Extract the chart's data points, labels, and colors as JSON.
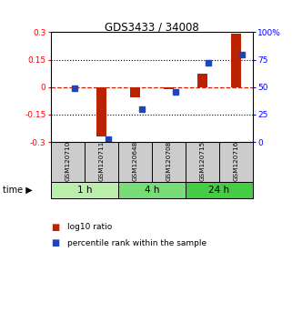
{
  "title": "GDS3433 / 34008",
  "samples": [
    "GSM120710",
    "GSM120711",
    "GSM120648",
    "GSM120708",
    "GSM120715",
    "GSM120716"
  ],
  "log10_ratio": [
    0.0,
    -0.27,
    -0.055,
    -0.01,
    0.075,
    0.29
  ],
  "percentile_rank": [
    49,
    3,
    30,
    46,
    72,
    80
  ],
  "time_groups": [
    {
      "label": "1 h",
      "start": 0,
      "end": 1,
      "color": "#bbeeaa"
    },
    {
      "label": "4 h",
      "start": 2,
      "end": 3,
      "color": "#77dd77"
    },
    {
      "label": "24 h",
      "start": 4,
      "end": 5,
      "color": "#44cc44"
    }
  ],
  "ylim_left": [
    -0.3,
    0.3
  ],
  "ylim_right": [
    0,
    100
  ],
  "yticks_left": [
    -0.3,
    -0.15,
    0,
    0.15,
    0.3
  ],
  "yticks_right": [
    0,
    25,
    50,
    75,
    100
  ],
  "ytick_labels_left": [
    "-0.3",
    "-0.15",
    "0",
    "0.15",
    "0.3"
  ],
  "ytick_labels_right": [
    "0",
    "25",
    "50",
    "75",
    "100%"
  ],
  "hlines": [
    0.15,
    -0.15
  ],
  "bar_color_red": "#bb2200",
  "bar_color_blue": "#2244bb",
  "zero_line_color": "#cc2200",
  "grid_color": "#000000",
  "bg_color": "#ffffff",
  "sample_box_color": "#cccccc",
  "legend_red_label": "log10 ratio",
  "legend_blue_label": "percentile rank within the sample",
  "bar_width": 0.3
}
